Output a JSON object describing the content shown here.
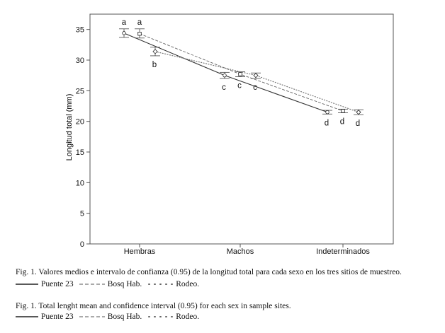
{
  "chart_data": {
    "type": "line",
    "categories": [
      "Hembras",
      "Machos",
      "Indeterminados"
    ],
    "ylabel": "Longitud total (mm)",
    "xlabel": "",
    "ylim": [
      0,
      37.5
    ],
    "yticks": [
      0,
      5,
      10,
      15,
      20,
      25,
      30,
      35
    ],
    "grid": false,
    "error_bars": true,
    "series": [
      {
        "name": "Puente 23",
        "style": "solid",
        "marker": "circle",
        "values": [
          34.4,
          27.5,
          21.5
        ],
        "ci_low": [
          33.7,
          27.0,
          21.2
        ],
        "ci_high": [
          35.1,
          28.0,
          21.8
        ],
        "letters": [
          "a",
          "c",
          "d"
        ]
      },
      {
        "name": "Bosq Hab.",
        "style": "dashed",
        "marker": "square",
        "values": [
          34.3,
          27.7,
          21.7
        ],
        "ci_low": [
          33.6,
          27.3,
          21.4
        ],
        "ci_high": [
          35.1,
          28.1,
          22.0
        ],
        "letters": [
          "a",
          "c",
          "d"
        ]
      },
      {
        "name": "Rodeo.",
        "style": "dotted",
        "marker": "diamond",
        "values": [
          31.4,
          27.5,
          21.5
        ],
        "ci_low": [
          30.7,
          27.0,
          21.1
        ],
        "ci_high": [
          32.1,
          27.9,
          21.9
        ],
        "letters": [
          "b",
          "c",
          "d"
        ]
      }
    ]
  },
  "caption_es": "Fig. 1. Valores medios  e intervalo de confianza (0.95) de la longitud total para cada sexo en los tres sitios de muestreo.",
  "caption_en": "Fig. 1. Total lenght mean and confidence interval (0.95) for each sex in sample sites.",
  "legend": {
    "puente": "Puente 23",
    "bosq": "Bosq Hab.",
    "rodeo": "Rodeo."
  }
}
